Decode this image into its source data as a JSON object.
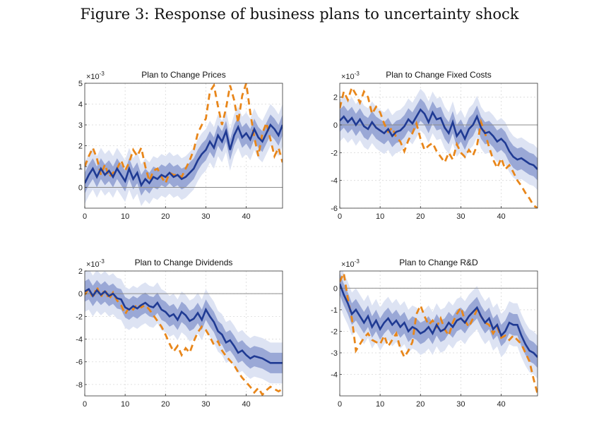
{
  "figure": {
    "title": "Figure 3: Response of business plans to uncertainty shock"
  },
  "style": {
    "median_color": "#1f3a93",
    "band_outer_color": "#dde3f3",
    "band_inner_color": "#9aa8d6",
    "dashed_color": "#e8861a",
    "zero_line_color": "#8c8c8c",
    "grid_color": "#d9d9d9"
  },
  "chart_data": [
    {
      "type": "line",
      "title": "Plan to Change Prices",
      "multiplier": "×10",
      "exponent": "-3",
      "xlim": [
        0,
        49
      ],
      "ylim": [
        -1,
        5
      ],
      "xticks": [
        0,
        10,
        20,
        30,
        40
      ],
      "yticks": [
        0,
        1,
        2,
        3,
        4,
        5
      ],
      "ytick_labels": [
        "0",
        "1",
        "2",
        "3",
        "4",
        "5"
      ],
      "grid": true,
      "series": [
        {
          "role": "median",
          "values": [
            0.2,
            0.6,
            0.9,
            0.5,
            0.9,
            0.6,
            0.8,
            0.5,
            0.9,
            0.6,
            0.3,
            0.9,
            0.4,
            0.7,
            0.1,
            0.4,
            0.2,
            0.5,
            0.4,
            0.6,
            0.5,
            0.7,
            0.5,
            0.6,
            0.4,
            0.5,
            0.7,
            0.9,
            1.3,
            1.6,
            1.8,
            2.2,
            1.9,
            2.5,
            2.2,
            2.7,
            1.8,
            2.5,
            2.9,
            2.4,
            2.6,
            2.3,
            2.8,
            2.4,
            2.2,
            2.6,
            3.0,
            2.8,
            2.5,
            3.0
          ]
        },
        {
          "role": "dashed",
          "values": [
            1.0,
            1.5,
            1.9,
            1.4,
            0.6,
            1.1,
            0.5,
            0.7,
            0.9,
            1.3,
            0.8,
            1.2,
            1.8,
            1.5,
            1.9,
            1.0,
            0.3,
            0.8,
            0.9,
            0.5,
            0.2,
            0.7,
            0.6,
            0.6,
            0.5,
            0.9,
            1.3,
            1.8,
            2.6,
            3.0,
            3.3,
            4.6,
            4.9,
            3.9,
            3.0,
            3.8,
            4.9,
            4.2,
            3.1,
            4.4,
            5.0,
            3.6,
            2.4,
            1.5,
            2.6,
            3.1,
            2.3,
            1.5,
            1.9,
            1.2
          ]
        }
      ],
      "bands": [
        {
          "role": "outer",
          "lower_offset": 1.0,
          "upper_offset": 1.0
        },
        {
          "role": "inner",
          "lower_offset": 0.5,
          "upper_offset": 0.5
        }
      ]
    },
    {
      "type": "line",
      "title": "Plan to Change Fixed Costs",
      "multiplier": "×10",
      "exponent": "-3",
      "xlim": [
        0,
        49
      ],
      "ylim": [
        -6,
        3
      ],
      "xticks": [
        0,
        10,
        20,
        30,
        40
      ],
      "yticks": [
        -6,
        -4,
        -2,
        0,
        2
      ],
      "ytick_labels": [
        "-6",
        "-4",
        "-2",
        "0",
        "2"
      ],
      "grid": true,
      "series": [
        {
          "role": "median",
          "values": [
            0.3,
            0.6,
            0.2,
            0.5,
            0.0,
            0.4,
            -0.1,
            -0.3,
            0.2,
            -0.2,
            -0.4,
            -0.6,
            -0.3,
            -0.8,
            -0.5,
            -0.4,
            -0.1,
            0.4,
            0.1,
            0.6,
            1.1,
            0.8,
            0.2,
            0.9,
            0.4,
            0.5,
            -0.2,
            -0.6,
            0.2,
            -0.8,
            -0.4,
            -1.0,
            -0.3,
            0.0,
            0.6,
            -0.2,
            -0.6,
            -0.5,
            -0.8,
            -1.2,
            -1.0,
            -1.3,
            -1.9,
            -2.3,
            -2.5,
            -2.4,
            -2.6,
            -2.8,
            -2.9,
            -3.2
          ]
        },
        {
          "role": "dashed",
          "values": [
            1.2,
            2.4,
            1.8,
            2.7,
            2.2,
            1.6,
            2.4,
            2.0,
            0.8,
            1.3,
            0.9,
            0.1,
            -0.5,
            -0.2,
            -0.9,
            -1.2,
            -1.9,
            -1.1,
            -0.6,
            0.1,
            -1.0,
            -1.8,
            -1.5,
            -1.3,
            -1.9,
            -2.3,
            -2.7,
            -2.0,
            -2.5,
            -1.4,
            -2.0,
            -2.3,
            -1.8,
            -2.2,
            -1.5,
            0.2,
            -0.6,
            -1.6,
            -2.5,
            -3.1,
            -2.4,
            -3.2,
            -2.9,
            -3.4,
            -4.0,
            -4.4,
            -4.9,
            -5.3,
            -5.8,
            -6.0
          ]
        }
      ],
      "bands": [
        {
          "role": "outer",
          "lower_offset": 1.5,
          "upper_offset": 1.5
        },
        {
          "role": "inner",
          "lower_offset": 0.8,
          "upper_offset": 0.8
        }
      ]
    },
    {
      "type": "line",
      "title": "Plan to Change Dividends",
      "multiplier": "×10",
      "exponent": "-3",
      "xlim": [
        0,
        49
      ],
      "ylim": [
        -9,
        2
      ],
      "xticks": [
        0,
        10,
        20,
        30,
        40
      ],
      "yticks": [
        -8,
        -6,
        -4,
        -2,
        0,
        2
      ],
      "ytick_labels": [
        "-8",
        "-6",
        "-4",
        "-2",
        "0",
        "2"
      ],
      "grid": true,
      "series": [
        {
          "role": "median",
          "values": [
            0.2,
            0.4,
            -0.2,
            0.3,
            -0.1,
            0.2,
            -0.2,
            0.0,
            -0.4,
            -0.5,
            -1.2,
            -1.4,
            -1.1,
            -1.3,
            -1.0,
            -0.8,
            -1.1,
            -1.2,
            -0.8,
            -1.4,
            -1.6,
            -2.0,
            -1.8,
            -2.3,
            -1.6,
            -1.9,
            -2.4,
            -2.2,
            -1.7,
            -2.3,
            -1.4,
            -2.0,
            -2.5,
            -3.3,
            -3.6,
            -4.3,
            -4.1,
            -4.6,
            -5.2,
            -5.0,
            -5.4,
            -5.7,
            -5.5,
            -5.6,
            -5.7,
            -5.9,
            -6.1,
            -6.1,
            -6.1,
            -6.1
          ]
        },
        {
          "role": "dashed",
          "values": [
            -0.1,
            0.5,
            -0.4,
            0.6,
            -0.3,
            0.4,
            -0.5,
            0.1,
            -0.6,
            -1.0,
            -1.8,
            -1.2,
            -1.4,
            -0.9,
            -1.2,
            -1.0,
            -1.4,
            -1.9,
            -2.4,
            -2.9,
            -3.6,
            -4.4,
            -5.1,
            -4.6,
            -5.4,
            -4.8,
            -5.2,
            -4.2,
            -3.4,
            -2.9,
            -3.2,
            -3.8,
            -4.5,
            -4.2,
            -5.0,
            -5.5,
            -5.9,
            -6.3,
            -6.9,
            -7.4,
            -7.8,
            -8.2,
            -8.7,
            -8.3,
            -8.9,
            -8.5,
            -8.2,
            -8.4,
            -8.6,
            -8.4
          ]
        }
      ],
      "bands": [
        {
          "role": "outer",
          "lower_offset": 1.8,
          "upper_offset": 1.8
        },
        {
          "role": "inner",
          "lower_offset": 0.9,
          "upper_offset": 0.9
        }
      ]
    },
    {
      "type": "line",
      "title": "Plan to Change R&D",
      "multiplier": "×10",
      "exponent": "-3",
      "xlim": [
        0,
        49
      ],
      "ylim": [
        -5,
        0.8
      ],
      "xticks": [
        0,
        10,
        20,
        30,
        40
      ],
      "yticks": [
        -4,
        -3,
        -2,
        -1,
        0
      ],
      "ytick_labels": [
        "-4",
        "-3",
        "-2",
        "-1",
        "0"
      ],
      "grid": true,
      "series": [
        {
          "role": "median",
          "values": [
            0.2,
            -0.3,
            -0.7,
            -1.2,
            -1.0,
            -1.3,
            -1.6,
            -1.3,
            -1.8,
            -1.5,
            -1.9,
            -1.6,
            -1.4,
            -1.7,
            -1.5,
            -1.8,
            -1.6,
            -2.0,
            -1.8,
            -1.9,
            -2.1,
            -2.0,
            -1.8,
            -2.1,
            -1.7,
            -2.0,
            -1.9,
            -1.6,
            -1.8,
            -1.5,
            -1.4,
            -1.6,
            -1.3,
            -1.1,
            -0.9,
            -1.3,
            -1.6,
            -1.4,
            -1.9,
            -1.7,
            -2.2,
            -2.0,
            -1.6,
            -1.7,
            -1.7,
            -2.2,
            -2.6,
            -2.9,
            -3.0,
            -3.2
          ]
        },
        {
          "role": "dashed",
          "values": [
            0.3,
            0.7,
            -0.5,
            -1.4,
            -2.9,
            -2.6,
            -2.3,
            -2.1,
            -2.4,
            -2.5,
            -2.6,
            -2.2,
            -2.7,
            -2.4,
            -2.1,
            -2.8,
            -3.2,
            -2.9,
            -2.5,
            -1.2,
            -0.8,
            -1.3,
            -1.7,
            -1.5,
            -1.8,
            -1.4,
            -1.9,
            -2.2,
            -1.6,
            -1.2,
            -0.9,
            -1.5,
            -1.8,
            -1.4,
            -1.0,
            -1.3,
            -1.6,
            -1.7,
            -2.1,
            -1.8,
            -2.3,
            -2.2,
            -2.4,
            -2.2,
            -2.4,
            -2.6,
            -3.0,
            -3.4,
            -4.2,
            -4.9
          ]
        }
      ],
      "bands": [
        {
          "role": "outer",
          "lower_offset": 1.0,
          "upper_offset": 1.0
        },
        {
          "role": "inner",
          "lower_offset": 0.5,
          "upper_offset": 0.5
        }
      ]
    }
  ]
}
